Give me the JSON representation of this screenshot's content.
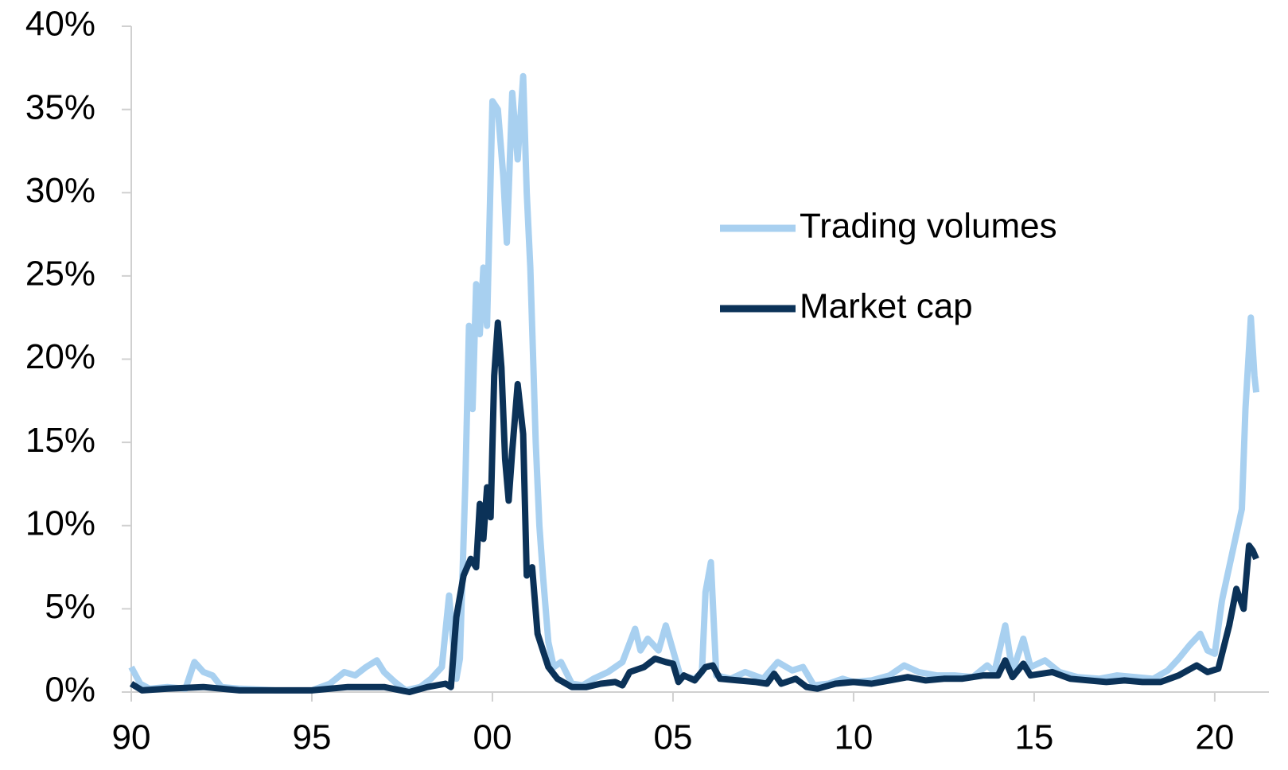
{
  "chart_data": {
    "type": "line",
    "xlim": [
      1990,
      2021.5
    ],
    "xticks": [
      {
        "value": 1990,
        "label": "90"
      },
      {
        "value": 1995,
        "label": "95"
      },
      {
        "value": 2000,
        "label": "00"
      },
      {
        "value": 2005,
        "label": "05"
      },
      {
        "value": 2010,
        "label": "10"
      },
      {
        "value": 2015,
        "label": "15"
      },
      {
        "value": 2020,
        "label": "20"
      }
    ],
    "ylim": [
      0,
      40
    ],
    "yticks": [
      {
        "value": 0,
        "label": "0%"
      },
      {
        "value": 5,
        "label": "5%"
      },
      {
        "value": 10,
        "label": "10%"
      },
      {
        "value": 15,
        "label": "15%"
      },
      {
        "value": 20,
        "label": "20%"
      },
      {
        "value": 25,
        "label": "25%"
      },
      {
        "value": 30,
        "label": "30%"
      },
      {
        "value": 35,
        "label": "35%"
      },
      {
        "value": 40,
        "label": "40%"
      }
    ],
    "grid": false,
    "legend": "center right",
    "series": [
      {
        "name": "Trading volumes",
        "color": "#a8d0f0",
        "x": [
          1990,
          1990.25,
          1990.5,
          1991,
          1991.5,
          1991.75,
          1992,
          1992.25,
          1992.5,
          1993,
          1994,
          1995,
          1995.5,
          1995.9,
          1996.2,
          1996.5,
          1996.8,
          1997,
          1997.3,
          1997.6,
          1998,
          1998.3,
          1998.6,
          1998.8,
          1999,
          1999.1,
          1999.25,
          1999.35,
          1999.45,
          1999.55,
          1999.65,
          1999.75,
          1999.85,
          2000,
          2000.15,
          2000.3,
          2000.4,
          2000.55,
          2000.7,
          2000.85,
          2000.95,
          2001.05,
          2001.2,
          2001.3,
          2001.4,
          2001.55,
          2001.7,
          2001.9,
          2002.2,
          2002.5,
          2002.8,
          2003.2,
          2003.6,
          2003.95,
          2004.1,
          2004.3,
          2004.6,
          2004.8,
          2005,
          2005.2,
          2005.6,
          2005.8,
          2005.9,
          2006.05,
          2006.2,
          2006.6,
          2007,
          2007.5,
          2007.9,
          2008.3,
          2008.6,
          2008.9,
          2009.3,
          2009.7,
          2010,
          2010.5,
          2011,
          2011.4,
          2011.8,
          2012.3,
          2012.8,
          2013.3,
          2013.7,
          2013.9,
          2014.2,
          2014.4,
          2014.7,
          2014.9,
          2015.3,
          2015.7,
          2016.2,
          2016.8,
          2017.3,
          2017.8,
          2018.3,
          2018.7,
          2019,
          2019.3,
          2019.6,
          2019.8,
          2020,
          2020.2,
          2020.5,
          2020.75,
          2020.85,
          2021,
          2021.1,
          2021.15
        ],
        "values": [
          1.5,
          0.5,
          0.2,
          0.3,
          0.2,
          1.8,
          1.2,
          1.0,
          0.3,
          0.2,
          0.1,
          0.1,
          0.5,
          1.2,
          1.0,
          1.5,
          1.9,
          1.2,
          0.6,
          0.1,
          0.3,
          0.8,
          1.5,
          5.8,
          0.8,
          2,
          12.5,
          22,
          17,
          24.5,
          21.5,
          25.5,
          22,
          35.5,
          35,
          31,
          27,
          36,
          32,
          37,
          30,
          25.5,
          15,
          10,
          7,
          3,
          1.5,
          1.8,
          0.5,
          0.4,
          0.8,
          1.2,
          1.8,
          3.8,
          2.5,
          3.2,
          2.5,
          4.0,
          2.5,
          1.0,
          0.8,
          1.2,
          6,
          7.8,
          1.0,
          0.8,
          1.2,
          0.8,
          1.8,
          1.3,
          1.5,
          0.4,
          0.5,
          0.8,
          0.6,
          0.7,
          1.0,
          1.6,
          1.2,
          1.0,
          1.0,
          0.9,
          1.6,
          1.2,
          4.0,
          1.2,
          3.2,
          1.5,
          1.9,
          1.2,
          0.9,
          0.8,
          1.0,
          0.9,
          0.8,
          1.3,
          2,
          2.8,
          3.5,
          2.5,
          2.3,
          5.5,
          8.5,
          11,
          17,
          22.5,
          19,
          18
        ]
      },
      {
        "name": "Market cap",
        "color": "#0b3258",
        "x": [
          1990,
          1990.3,
          1991,
          1992,
          1993,
          1994,
          1995,
          1996,
          1997,
          1997.7,
          1998.2,
          1998.7,
          1998.85,
          1999,
          1999.2,
          1999.4,
          1999.55,
          1999.65,
          1999.75,
          1999.85,
          1999.95,
          2000.05,
          2000.15,
          2000.25,
          2000.35,
          2000.45,
          2000.55,
          2000.7,
          2000.85,
          2000.95,
          2001.1,
          2001.25,
          2001.4,
          2001.55,
          2001.8,
          2002.2,
          2002.6,
          2003,
          2003.4,
          2003.6,
          2003.8,
          2004.2,
          2004.5,
          2004.8,
          2005,
          2005.15,
          2005.3,
          2005.6,
          2005.9,
          2006.1,
          2006.3,
          2006.8,
          2007.3,
          2007.6,
          2007.8,
          2008,
          2008.4,
          2008.7,
          2009,
          2009.5,
          2010,
          2010.5,
          2011,
          2011.5,
          2012,
          2012.5,
          2013,
          2013.6,
          2014,
          2014.2,
          2014.4,
          2014.7,
          2014.9,
          2015.5,
          2016,
          2017,
          2017.5,
          2018,
          2018.5,
          2019,
          2019.5,
          2019.8,
          2020.1,
          2020.4,
          2020.6,
          2020.8,
          2020.95,
          2021.05,
          2021.15
        ],
        "values": [
          0.5,
          0.1,
          0.2,
          0.3,
          0.1,
          0.1,
          0.1,
          0.3,
          0.3,
          0.0,
          0.3,
          0.5,
          0.3,
          4.5,
          7,
          8,
          7.5,
          11.3,
          9.2,
          12.3,
          10.5,
          19,
          22.2,
          19.5,
          14,
          11.5,
          14.5,
          18.5,
          15.5,
          7,
          7.5,
          3.5,
          2.5,
          1.5,
          0.8,
          0.3,
          0.3,
          0.5,
          0.6,
          0.4,
          1.2,
          1.5,
          2.0,
          1.8,
          1.7,
          0.6,
          1.0,
          0.7,
          1.5,
          1.6,
          0.8,
          0.7,
          0.6,
          0.5,
          1.1,
          0.5,
          0.8,
          0.3,
          0.2,
          0.5,
          0.6,
          0.5,
          0.7,
          0.9,
          0.7,
          0.8,
          0.8,
          1.0,
          1.0,
          1.9,
          0.9,
          1.7,
          1.0,
          1.2,
          0.8,
          0.6,
          0.7,
          0.6,
          0.6,
          1.0,
          1.6,
          1.2,
          1.4,
          4.0,
          6.2,
          5,
          8.8,
          8.5,
          8.0
        ]
      }
    ]
  }
}
